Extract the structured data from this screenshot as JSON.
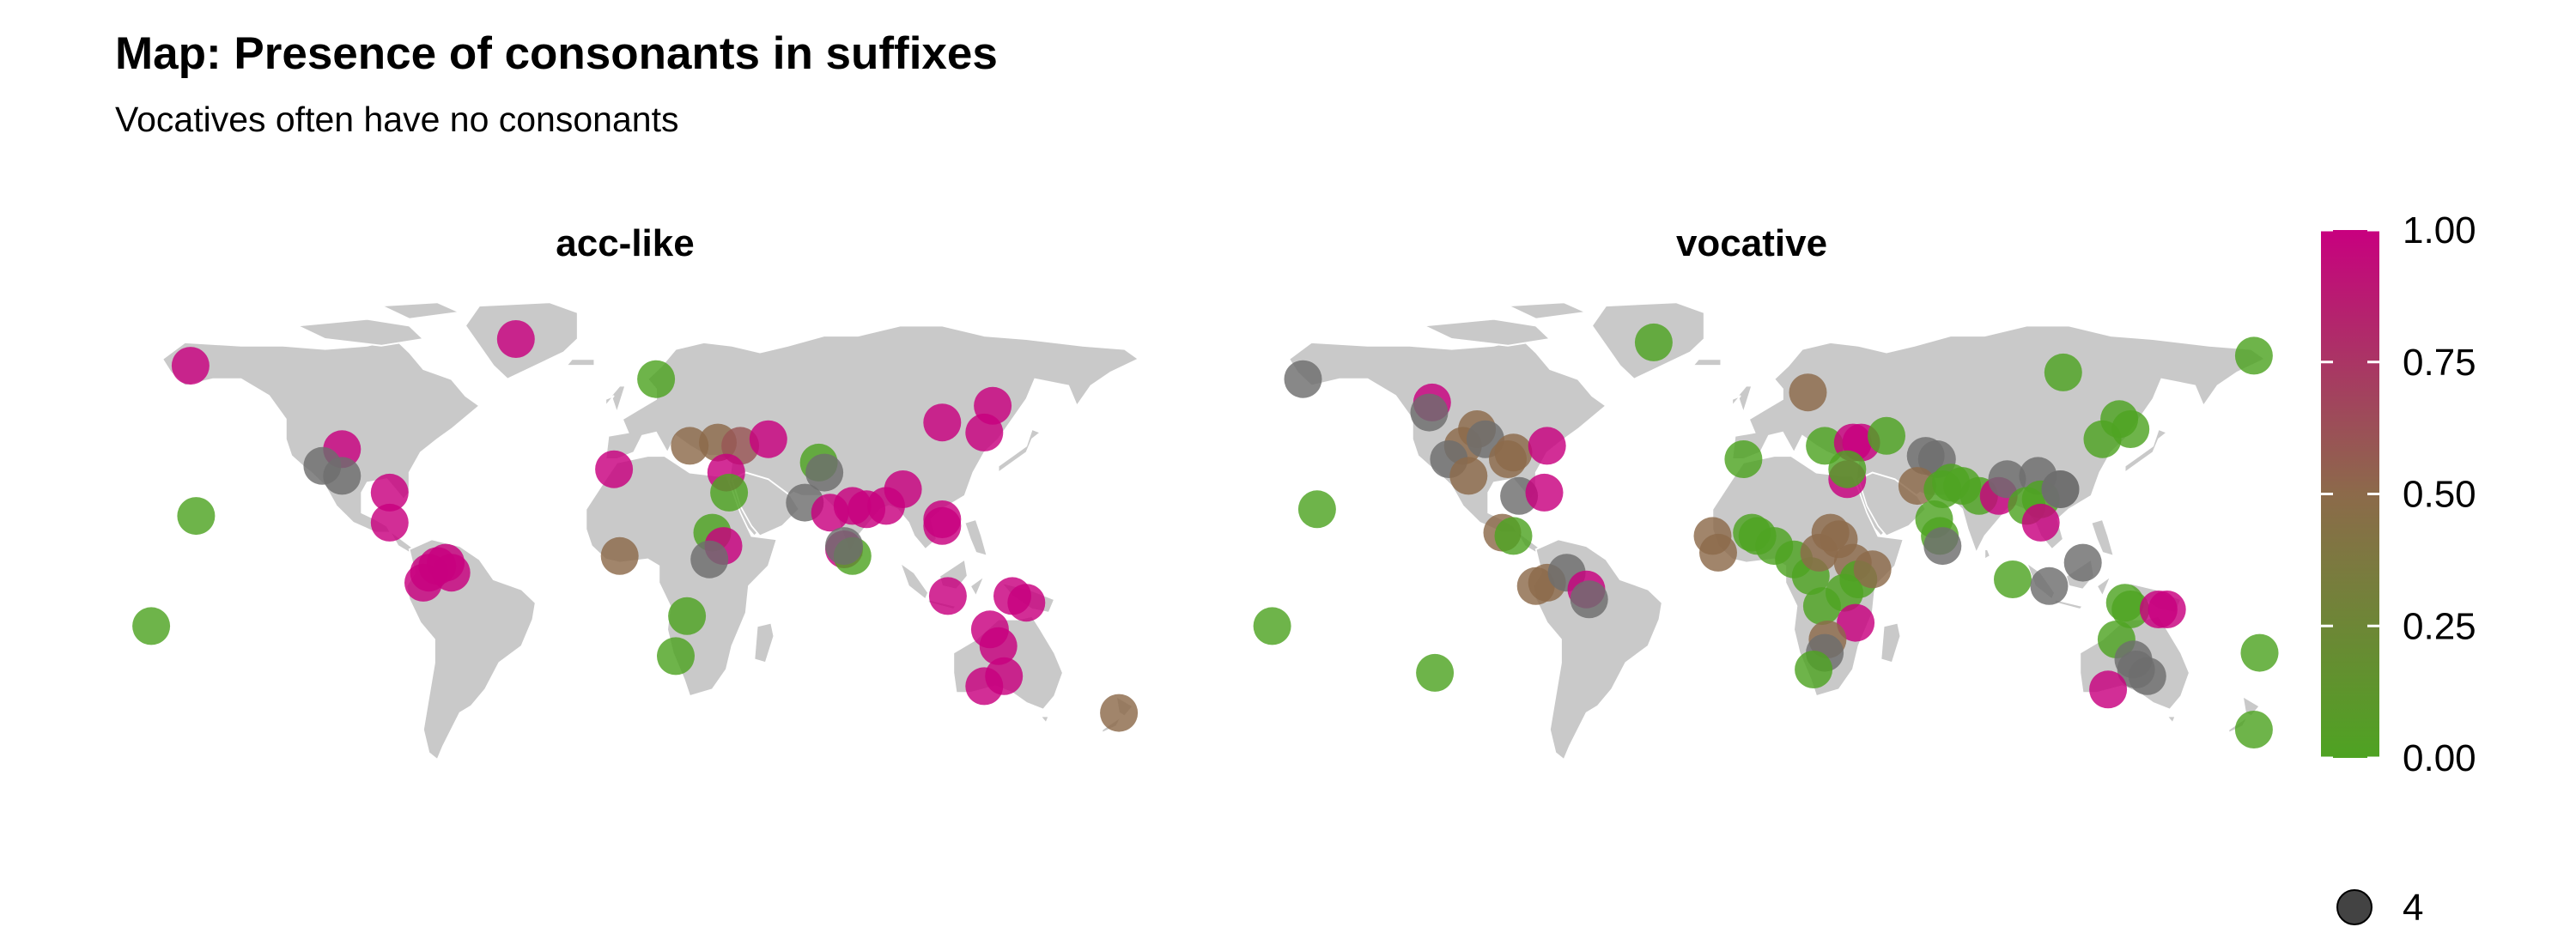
{
  "chart_data": {
    "type": "scatter",
    "title": "Map: Presence of consonants in suffixes",
    "subtitle": "Vocatives often have no consonants",
    "panels": [
      {
        "name": "acc-like",
        "points": [
          {
            "lon": -158,
            "lat": 64,
            "v": 1.0
          },
          {
            "lon": -42,
            "lat": 72,
            "v": 1.0
          },
          {
            "lon": -104,
            "lat": 39,
            "v": 1.0
          },
          {
            "lon": -111,
            "lat": 34,
            "v": null
          },
          {
            "lon": -104,
            "lat": 31,
            "v": null
          },
          {
            "lon": -87,
            "lat": 26,
            "v": 1.0
          },
          {
            "lon": -87,
            "lat": 17,
            "v": 1.0
          },
          {
            "lon": -156,
            "lat": 19,
            "v": 0.0
          },
          {
            "lon": -172,
            "lat": -14,
            "v": 0.0
          },
          {
            "lon": -73,
            "lat": 2,
            "v": 1.0
          },
          {
            "lon": -70,
            "lat": 4,
            "v": 1.0
          },
          {
            "lon": -67,
            "lat": 5,
            "v": 1.0
          },
          {
            "lon": -75,
            "lat": -1,
            "v": 1.0
          },
          {
            "lon": -65,
            "lat": 2,
            "v": 1.0
          },
          {
            "lon": 8,
            "lat": 60,
            "v": 0.0
          },
          {
            "lon": -7,
            "lat": 33,
            "v": 1.0
          },
          {
            "lon": 20,
            "lat": 40,
            "v": 0.5
          },
          {
            "lon": 30,
            "lat": 41,
            "v": 0.5
          },
          {
            "lon": 38,
            "lat": 40,
            "v": 0.6
          },
          {
            "lon": 48,
            "lat": 42,
            "v": 1.0
          },
          {
            "lon": 33,
            "lat": 32,
            "v": 1.0
          },
          {
            "lon": 34,
            "lat": 26,
            "v": 0.0
          },
          {
            "lon": 28,
            "lat": 14,
            "v": 0.0
          },
          {
            "lon": 32,
            "lat": 10,
            "v": 1.0
          },
          {
            "lon": -5,
            "lat": 7,
            "v": 0.5
          },
          {
            "lon": 27,
            "lat": 6,
            "v": null
          },
          {
            "lon": 19,
            "lat": -11,
            "v": 0.0
          },
          {
            "lon": 15,
            "lat": -23,
            "v": 0.0
          },
          {
            "lon": 66,
            "lat": 35,
            "v": 0.0
          },
          {
            "lon": 68,
            "lat": 32,
            "v": null
          },
          {
            "lon": 61,
            "lat": 23,
            "v": null
          },
          {
            "lon": 70,
            "lat": 20,
            "v": 1.0
          },
          {
            "lon": 78,
            "lat": 22,
            "v": 1.0
          },
          {
            "lon": 83,
            "lat": 21,
            "v": 1.0
          },
          {
            "lon": 90,
            "lat": 22,
            "v": 1.0
          },
          {
            "lon": 96,
            "lat": 27,
            "v": 1.0
          },
          {
            "lon": 75,
            "lat": 9,
            "v": 1.0
          },
          {
            "lon": 78,
            "lat": 7,
            "v": 0.0
          },
          {
            "lon": 75,
            "lat": 10,
            "v": null
          },
          {
            "lon": 110,
            "lat": 18,
            "v": 1.0
          },
          {
            "lon": 110,
            "lat": 16,
            "v": 1.0
          },
          {
            "lon": 110,
            "lat": 47,
            "v": 1.0
          },
          {
            "lon": 128,
            "lat": 52,
            "v": 1.0
          },
          {
            "lon": 125,
            "lat": 44,
            "v": 1.0
          },
          {
            "lon": 112,
            "lat": -5,
            "v": 1.0
          },
          {
            "lon": 135,
            "lat": -5,
            "v": 1.0
          },
          {
            "lon": 140,
            "lat": -7,
            "v": 1.0
          },
          {
            "lon": 127,
            "lat": -15,
            "v": 1.0
          },
          {
            "lon": 130,
            "lat": -20,
            "v": 1.0
          },
          {
            "lon": 132,
            "lat": -29,
            "v": 1.0
          },
          {
            "lon": 125,
            "lat": -32,
            "v": 1.0
          },
          {
            "lon": 173,
            "lat": -40,
            "v": 0.5
          }
        ]
      },
      {
        "name": "vocative",
        "points": [
          {
            "lon": -38,
            "lat": 71,
            "v": 0.0
          },
          {
            "lon": -163,
            "lat": 60,
            "v": null
          },
          {
            "lon": -117,
            "lat": 53,
            "v": 1.0
          },
          {
            "lon": -118,
            "lat": 50,
            "v": null
          },
          {
            "lon": -101,
            "lat": 45,
            "v": 0.5
          },
          {
            "lon": -106,
            "lat": 40,
            "v": 0.5
          },
          {
            "lon": -98,
            "lat": 42,
            "v": null
          },
          {
            "lon": -111,
            "lat": 36,
            "v": null
          },
          {
            "lon": -104,
            "lat": 31,
            "v": 0.5
          },
          {
            "lon": -90,
            "lat": 36,
            "v": 0.5
          },
          {
            "lon": -88,
            "lat": 38,
            "v": 0.5
          },
          {
            "lon": -76,
            "lat": 40,
            "v": 1.0
          },
          {
            "lon": -86,
            "lat": 25,
            "v": null
          },
          {
            "lon": -77,
            "lat": 26,
            "v": 1.0
          },
          {
            "lon": -92,
            "lat": 14,
            "v": 0.5
          },
          {
            "lon": -88,
            "lat": 13,
            "v": 0.0
          },
          {
            "lon": -158,
            "lat": 21,
            "v": 0.0
          },
          {
            "lon": -174,
            "lat": -14,
            "v": 0.0
          },
          {
            "lon": -116,
            "lat": -28,
            "v": 0.0
          },
          {
            "lon": -80,
            "lat": -2,
            "v": 0.5
          },
          {
            "lon": -76,
            "lat": -1,
            "v": 0.5
          },
          {
            "lon": -69,
            "lat": 2,
            "v": null
          },
          {
            "lon": -62,
            "lat": -3,
            "v": 1.0
          },
          {
            "lon": -61,
            "lat": -6,
            "v": null
          },
          {
            "lon": 17,
            "lat": 56,
            "v": 0.5
          },
          {
            "lon": -6,
            "lat": 36,
            "v": 0.0
          },
          {
            "lon": 23,
            "lat": 40,
            "v": 0.0
          },
          {
            "lon": 33,
            "lat": 41,
            "v": 1.0
          },
          {
            "lon": 36,
            "lat": 41,
            "v": 1.0
          },
          {
            "lon": 45,
            "lat": 43,
            "v": 0.0
          },
          {
            "lon": 31,
            "lat": 30,
            "v": 1.0
          },
          {
            "lon": 31,
            "lat": 33,
            "v": 0.0
          },
          {
            "lon": 59,
            "lat": 37,
            "v": null
          },
          {
            "lon": 63,
            "lat": 36,
            "v": null
          },
          {
            "lon": 56,
            "lat": 28,
            "v": 0.5
          },
          {
            "lon": 65,
            "lat": 27,
            "v": 0.0
          },
          {
            "lon": 68,
            "lat": 29,
            "v": 0.0
          },
          {
            "lon": 72,
            "lat": 28,
            "v": 0.0
          },
          {
            "lon": 78,
            "lat": 25,
            "v": 0.0
          },
          {
            "lon": 85,
            "lat": 25,
            "v": 1.0
          },
          {
            "lon": 88,
            "lat": 30,
            "v": null
          },
          {
            "lon": 99,
            "lat": 31,
            "v": null
          },
          {
            "lon": 95,
            "lat": 22,
            "v": 0.0
          },
          {
            "lon": 100,
            "lat": 24,
            "v": 0.0
          },
          {
            "lon": 107,
            "lat": 27,
            "v": null
          },
          {
            "lon": 107,
            "lat": 27,
            "v": null
          },
          {
            "lon": 100,
            "lat": 17,
            "v": 1.0
          },
          {
            "lon": 62,
            "lat": 18,
            "v": 0.0
          },
          {
            "lon": 64,
            "lat": 13,
            "v": 0.0
          },
          {
            "lon": 65,
            "lat": 10,
            "v": null
          },
          {
            "lon": 90,
            "lat": 0,
            "v": 0.0
          },
          {
            "lon": 103,
            "lat": -2,
            "v": null
          },
          {
            "lon": 115,
            "lat": 5,
            "v": null
          },
          {
            "lon": 130,
            "lat": -7,
            "v": 0.0
          },
          {
            "lon": 132,
            "lat": -9,
            "v": 0.0
          },
          {
            "lon": 142,
            "lat": -9,
            "v": 1.0
          },
          {
            "lon": 145,
            "lat": -9,
            "v": 1.0
          },
          {
            "lon": 127,
            "lat": -18,
            "v": 0.0
          },
          {
            "lon": 133,
            "lat": -24,
            "v": null
          },
          {
            "lon": 134,
            "lat": -27,
            "v": null
          },
          {
            "lon": 138,
            "lat": -29,
            "v": null
          },
          {
            "lon": 124,
            "lat": -33,
            "v": 1.0
          },
          {
            "lon": 178,
            "lat": -22,
            "v": 0.0
          },
          {
            "lon": 176,
            "lat": -45,
            "v": 0.0
          },
          {
            "lon": 108,
            "lat": 62,
            "v": 0.0
          },
          {
            "lon": 176,
            "lat": 67,
            "v": 0.0
          },
          {
            "lon": 128,
            "lat": 48,
            "v": 0.0
          },
          {
            "lon": 132,
            "lat": 45,
            "v": 0.0
          },
          {
            "lon": 122,
            "lat": 42,
            "v": 0.0
          },
          {
            "lon": -15,
            "lat": 8,
            "v": 0.5
          },
          {
            "lon": -17,
            "lat": 13,
            "v": 0.5
          },
          {
            "lon": -3,
            "lat": 14,
            "v": 0.0
          },
          {
            "lon": -1,
            "lat": 13,
            "v": 0.0
          },
          {
            "lon": 5,
            "lat": 10,
            "v": 0.0
          },
          {
            "lon": 12,
            "lat": 6,
            "v": 0.0
          },
          {
            "lon": 18,
            "lat": 1,
            "v": 0.0
          },
          {
            "lon": 21,
            "lat": 8,
            "v": 0.5
          },
          {
            "lon": 25,
            "lat": 14,
            "v": 0.5
          },
          {
            "lon": 28,
            "lat": 12,
            "v": 0.5
          },
          {
            "lon": 33,
            "lat": 5,
            "v": 0.5
          },
          {
            "lon": 35,
            "lat": 0,
            "v": 0.0
          },
          {
            "lon": 40,
            "lat": 3,
            "v": 0.5
          },
          {
            "lon": 22,
            "lat": -8,
            "v": 0.0
          },
          {
            "lon": 30,
            "lat": -4,
            "v": 0.0
          },
          {
            "lon": 34,
            "lat": -13,
            "v": 1.0
          },
          {
            "lon": 24,
            "lat": -18,
            "v": 0.5
          },
          {
            "lon": 23,
            "lat": -22,
            "v": null
          },
          {
            "lon": 19,
            "lat": -27,
            "v": 0.0
          }
        ]
      }
    ],
    "colorbar": {
      "ticks": [
        1.0,
        0.75,
        0.5,
        0.25,
        0.0
      ],
      "labels": [
        "1.00",
        "0.75",
        "0.50",
        "0.25",
        "0.00"
      ],
      "range": [
        0,
        1
      ]
    },
    "size_legend": {
      "label": "4"
    },
    "colors": {
      "high": "#c8007f",
      "mid": "#8c6a4a",
      "low": "#4ea322",
      "missing": "#6e6e6e",
      "land": "#c9c9c9"
    }
  }
}
